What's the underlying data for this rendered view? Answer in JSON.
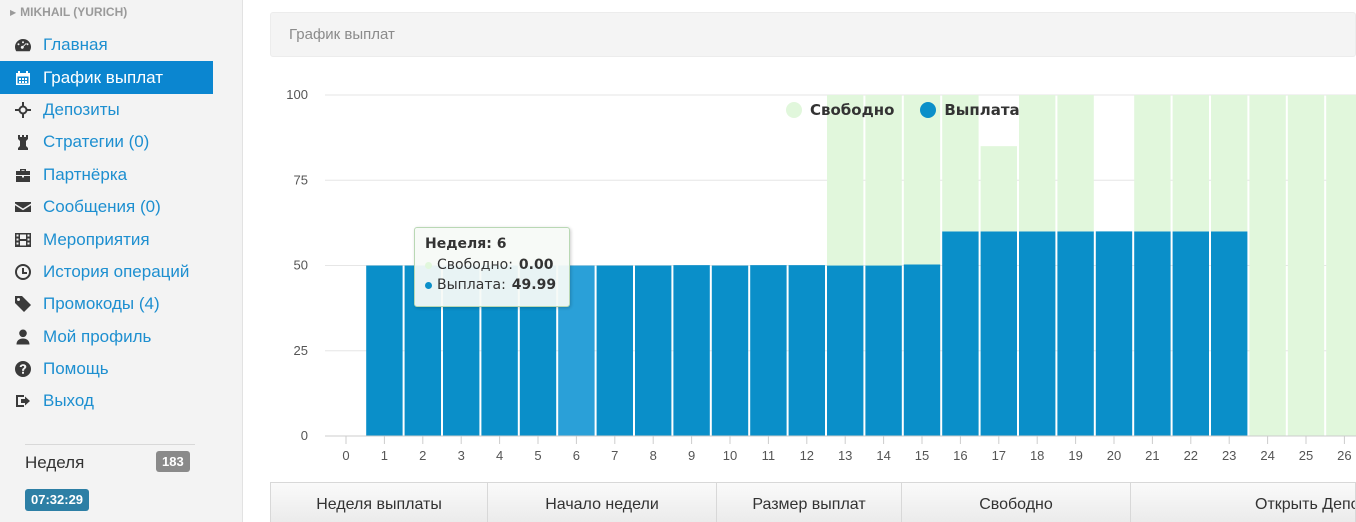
{
  "sidebar": {
    "user_name": "MIKHAIL (YURICH)",
    "items": [
      {
        "label": "Главная",
        "icon": "dashboard-icon",
        "name": "sidebar-item-home",
        "active": false
      },
      {
        "label": "График выплат",
        "icon": "calendar-icon",
        "name": "sidebar-item-payout-schedule",
        "active": true
      },
      {
        "label": "Депозиты",
        "icon": "crosshair-icon",
        "name": "sidebar-item-deposits",
        "active": false
      },
      {
        "label": "Стратегии (0)",
        "icon": "chess-rook-icon",
        "name": "sidebar-item-strategies",
        "active": false
      },
      {
        "label": "Партнёрка",
        "icon": "briefcase-icon",
        "name": "sidebar-item-partners",
        "active": false
      },
      {
        "label": "Сообщения (0)",
        "icon": "envelope-icon",
        "name": "sidebar-item-messages",
        "active": false
      },
      {
        "label": "Мероприятия",
        "icon": "film-icon",
        "name": "sidebar-item-events",
        "active": false
      },
      {
        "label": "История операций",
        "icon": "clock-icon",
        "name": "sidebar-item-history",
        "active": false
      },
      {
        "label": "Промокоды (4)",
        "icon": "tag-icon",
        "name": "sidebar-item-promocodes",
        "active": false
      },
      {
        "label": "Мой профиль",
        "icon": "user-icon",
        "name": "sidebar-item-profile",
        "active": false
      },
      {
        "label": "Помощь",
        "icon": "question-icon",
        "name": "sidebar-item-help",
        "active": false
      },
      {
        "label": "Выход",
        "icon": "logout-icon",
        "name": "sidebar-item-logout",
        "active": false
      }
    ],
    "week_label": "Неделя",
    "week_number": "183",
    "clock": "07:32:29"
  },
  "main": {
    "panel_title": "График выплат",
    "table_headers": [
      "Неделя выплаты",
      "Начало недели",
      "Размер выплат",
      "Свободно",
      "Открыть Депо"
    ]
  },
  "colors": {
    "accent": "#0b86d0",
    "payout_bar": "#0a8fc9",
    "payout_bar_hover": "#2aa0d8",
    "free_bar": "#e1f7dc"
  },
  "tooltip": {
    "title": "Неделя: 6",
    "free_label": "Свободно:",
    "free_value": "0.00",
    "payout_label": "Выплата:",
    "payout_value": "49.99"
  },
  "chart_data": {
    "type": "bar",
    "stacked": true,
    "categories": [
      0,
      1,
      2,
      3,
      4,
      5,
      6,
      7,
      8,
      9,
      10,
      11,
      12,
      13,
      14,
      15,
      16,
      17,
      18,
      19,
      20,
      21,
      22,
      23,
      24,
      25,
      26
    ],
    "series": [
      {
        "name": "Выплата",
        "color": "#0a8fc9",
        "values": [
          0,
          49.99,
          49.99,
          49.99,
          49.99,
          49.99,
          49.99,
          49.99,
          49.99,
          50.1,
          49.99,
          50.1,
          50.1,
          49.99,
          49.99,
          50.3,
          60,
          60,
          60,
          60,
          60,
          60,
          60,
          60,
          0,
          0,
          0
        ]
      },
      {
        "name": "Свободно",
        "color": "#e1f7dc",
        "values": [
          0,
          0,
          0,
          0,
          0,
          0,
          0,
          0,
          0,
          0,
          0,
          0,
          0,
          50.01,
          50.01,
          49.7,
          40,
          25,
          40,
          40,
          0,
          40,
          40,
          40,
          100,
          100,
          100
        ]
      }
    ],
    "ylim": [
      0,
      100
    ],
    "yticks": [
      0,
      25,
      50,
      75,
      100
    ],
    "grid": true,
    "legend": "top",
    "highlighted_category": 6
  }
}
